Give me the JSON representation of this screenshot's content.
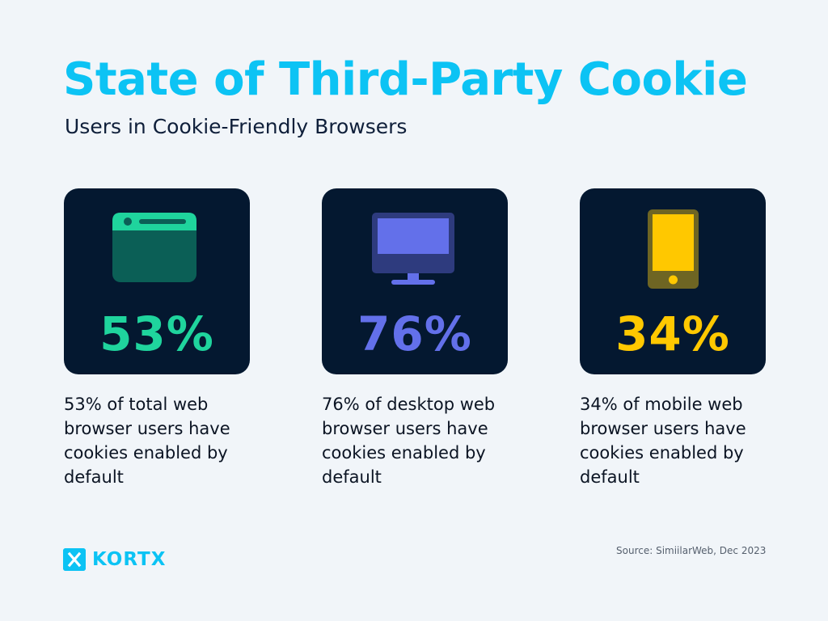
{
  "header": {
    "title": "State of Third-Party Cookie",
    "subtitle": "Users in Cookie-Friendly Browsers"
  },
  "cards": [
    {
      "icon": "browser-window-icon",
      "value": "53%",
      "color": "#1fd49d",
      "description": "53% of total web browser users have cookies enabled by default"
    },
    {
      "icon": "desktop-monitor-icon",
      "value": "76%",
      "color": "#6370ea",
      "description": "76% of desktop web browser users have cookies enabled by default"
    },
    {
      "icon": "mobile-phone-icon",
      "value": "34%",
      "color": "#ffc800",
      "description": "34% of mobile web browser users have cookies enabled by default"
    }
  ],
  "footer": {
    "logo_text": "KORTX",
    "logo_mark": "X",
    "source": "Source: SimiilarWeb, Dec 2023"
  },
  "colors": {
    "background": "#f1f5f9",
    "title": "#0cc3f4",
    "card_background": "#041830"
  }
}
